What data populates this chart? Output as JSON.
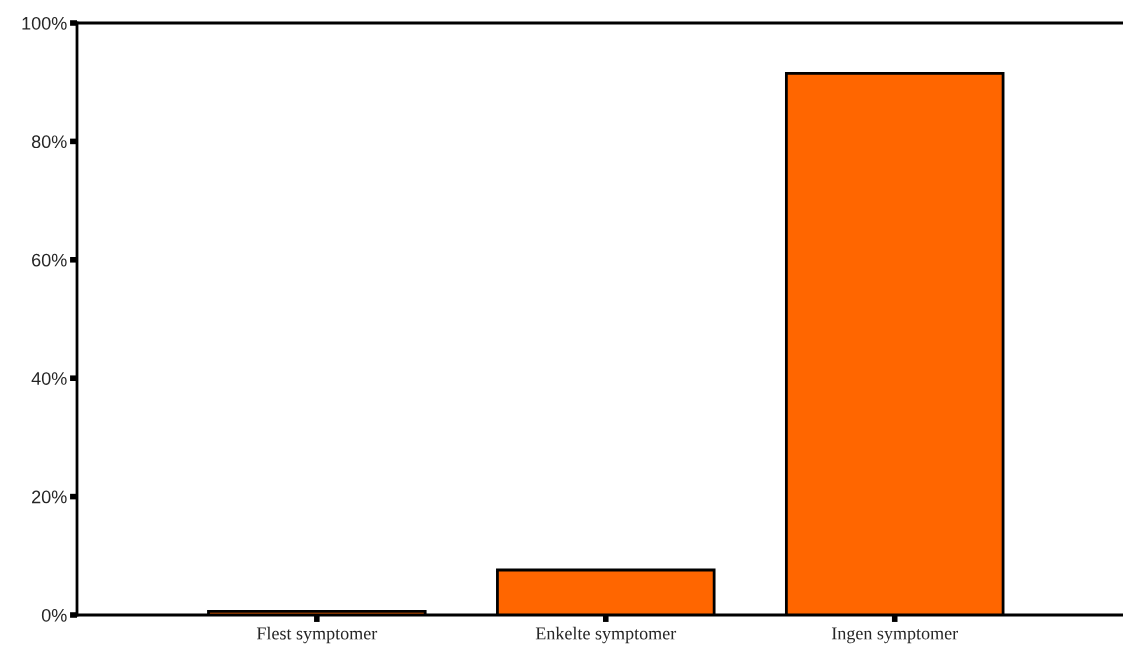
{
  "chart_data": {
    "type": "bar",
    "categories": [
      "Flest symptomer",
      "Enkelte symptomer",
      "Ingen symptomer"
    ],
    "values": [
      0.6,
      7.6,
      91.5
    ],
    "color": "#ff6600",
    "ylim": [
      0,
      100
    ],
    "yticks": [
      {
        "value": 0,
        "label": "0%"
      },
      {
        "value": 20,
        "label": "20%"
      },
      {
        "value": 40,
        "label": "40%"
      },
      {
        "value": 60,
        "label": "60%"
      },
      {
        "value": 80,
        "label": "80%"
      },
      {
        "value": 100,
        "label": "100%"
      }
    ],
    "grid": false
  }
}
